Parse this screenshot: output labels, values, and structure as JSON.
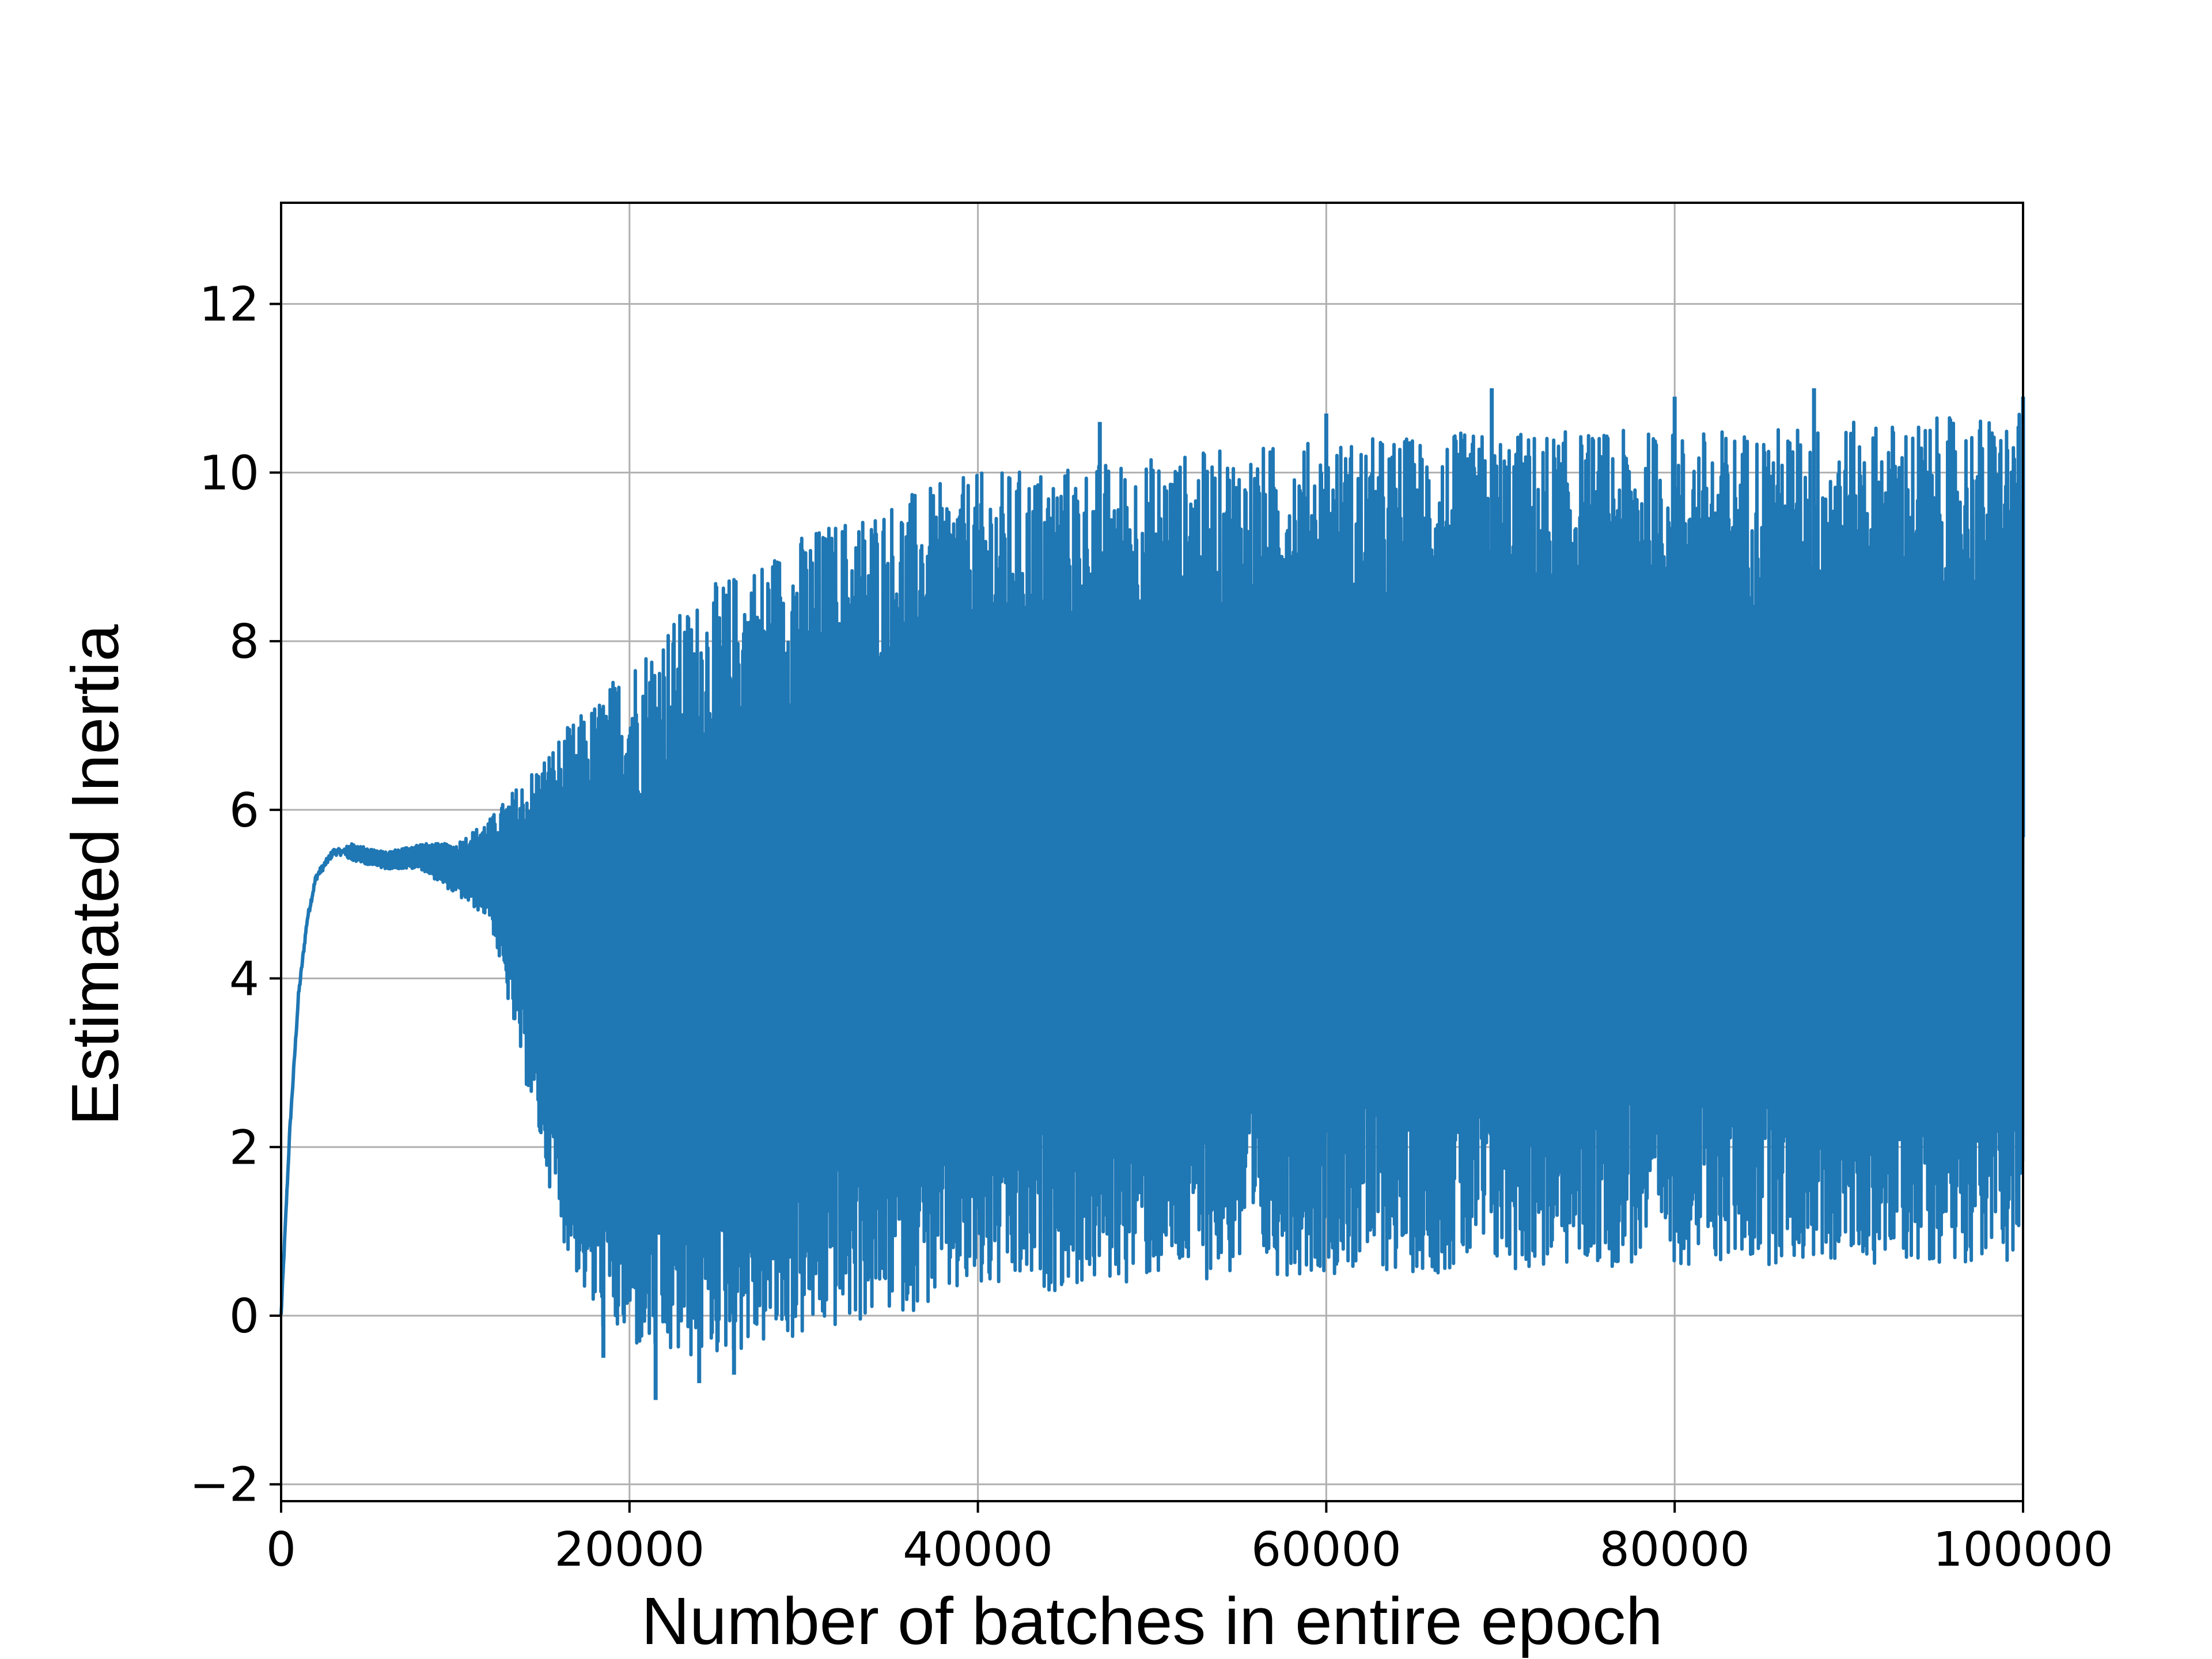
{
  "chart_data": {
    "type": "line",
    "title": "",
    "xlabel": "Number of batches in entire epoch",
    "ylabel": "Estimated Inertia",
    "xlim": [
      0,
      100000
    ],
    "ylim": [
      -2.2,
      13.2
    ],
    "grid": true,
    "x_ticks": [
      0,
      20000,
      40000,
      60000,
      80000,
      100000
    ],
    "x_tick_labels": [
      "0",
      "20000",
      "40000",
      "60000",
      "80000",
      "100000"
    ],
    "y_ticks": [
      -2,
      0,
      2,
      4,
      6,
      8,
      10,
      12
    ],
    "y_tick_labels": [
      "−2",
      "0",
      "2",
      "4",
      "6",
      "8",
      "10",
      "12"
    ],
    "series": [
      {
        "color": "#1f77b4",
        "description_of_shape": "rises quickly from 0 to ~5.5 by x≈3000, stays ~5.5 until ~11000, then oscillates with widening envelope",
        "envelope": {
          "x": [
            0,
            500,
            1000,
            1500,
            2000,
            3000,
            4000,
            6000,
            8000,
            10000,
            12000,
            14000,
            16000,
            18000,
            20000,
            22000,
            25000,
            30000,
            35000,
            40000,
            50000,
            60000,
            70000,
            80000,
            90000,
            100000
          ],
          "upper": [
            0,
            2.2,
            3.8,
            4.7,
            5.2,
            5.5,
            5.6,
            5.5,
            5.6,
            5.6,
            5.9,
            6.4,
            6.9,
            7.3,
            7.8,
            8.2,
            8.7,
            9.3,
            9.7,
            10.0,
            10.2,
            10.4,
            10.5,
            10.5,
            10.6,
            10.7
          ],
          "lower": [
            0,
            2.2,
            3.8,
            4.7,
            5.2,
            5.5,
            5.4,
            5.3,
            5.3,
            5.0,
            4.7,
            2.8,
            1.0,
            -0.1,
            -0.4,
            -0.6,
            -0.5,
            -0.3,
            0.0,
            0.2,
            0.4,
            0.5,
            0.5,
            0.6,
            0.6,
            0.65
          ],
          "max_spikes": [
            {
              "x": 47000,
              "y": 10.6
            },
            {
              "x": 60000,
              "y": 10.7
            },
            {
              "x": 69500,
              "y": 11.0
            },
            {
              "x": 80000,
              "y": 10.9
            },
            {
              "x": 88000,
              "y": 11.0
            },
            {
              "x": 100000,
              "y": 10.9
            }
          ],
          "min_spikes": [
            {
              "x": 18500,
              "y": -0.5
            },
            {
              "x": 21500,
              "y": -1.0
            },
            {
              "x": 24000,
              "y": -0.8
            },
            {
              "x": 26000,
              "y": -0.7
            }
          ]
        }
      }
    ]
  }
}
